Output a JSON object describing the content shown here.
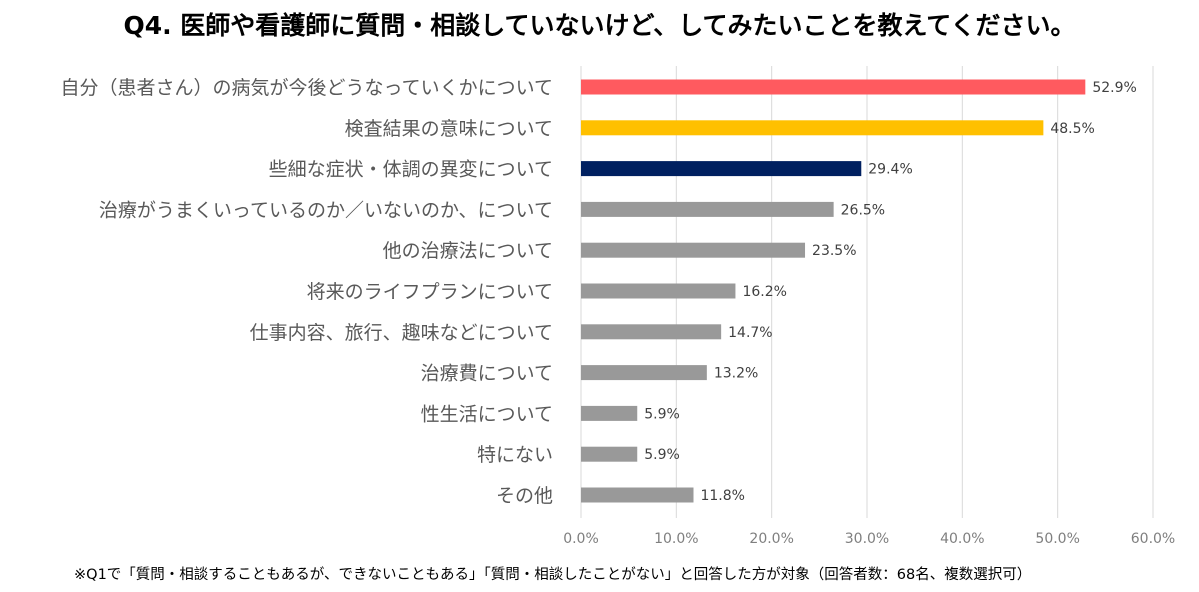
{
  "title": "Q4. 医師や看護師に質問・相談していないけど、してみたいことを教えてください。",
  "footnote": "※Q1で「質問・相談することもあるが、できないこともある」「質問・相談したことがない」と回答した方が対象（回答者数：68名、複数選択可）",
  "chart_data": {
    "type": "bar",
    "orientation": "horizontal",
    "title": "Q4. 医師や看護師に質問・相談していないけど、してみたいことを教えてください。",
    "categories": [
      "自分（患者さん）の病気が今後どうなっていくかについて",
      "検査結果の意味について",
      "些細な症状・体調の異変について",
      "治療がうまくいっているのか／いないのか、について",
      "他の治療法について",
      "将来のライフプランについて",
      "仕事内容、旅行、趣味などについて",
      "治療費について",
      "性生活について",
      "特にない",
      "その他"
    ],
    "values": [
      52.9,
      48.5,
      29.4,
      26.5,
      23.5,
      16.2,
      14.7,
      13.2,
      5.9,
      5.9,
      11.8
    ],
    "value_labels": [
      "52.9%",
      "48.5%",
      "29.4%",
      "26.5%",
      "23.5%",
      "16.2%",
      "14.7%",
      "13.2%",
      "5.9%",
      "5.9%",
      "11.8%"
    ],
    "bar_colors": [
      "#ff5a5f",
      "#ffc000",
      "#002060",
      "#999999",
      "#999999",
      "#999999",
      "#999999",
      "#999999",
      "#999999",
      "#999999",
      "#999999"
    ],
    "xlim": [
      0,
      60
    ],
    "xticks": [
      0,
      10,
      20,
      30,
      40,
      50,
      60
    ],
    "xtick_labels": [
      "0.0%",
      "10.0%",
      "20.0%",
      "30.0%",
      "40.0%",
      "50.0%",
      "60.0%"
    ],
    "grid": "vertical",
    "gridline_color": "#d9d9d9",
    "xlabel": "",
    "ylabel": ""
  }
}
